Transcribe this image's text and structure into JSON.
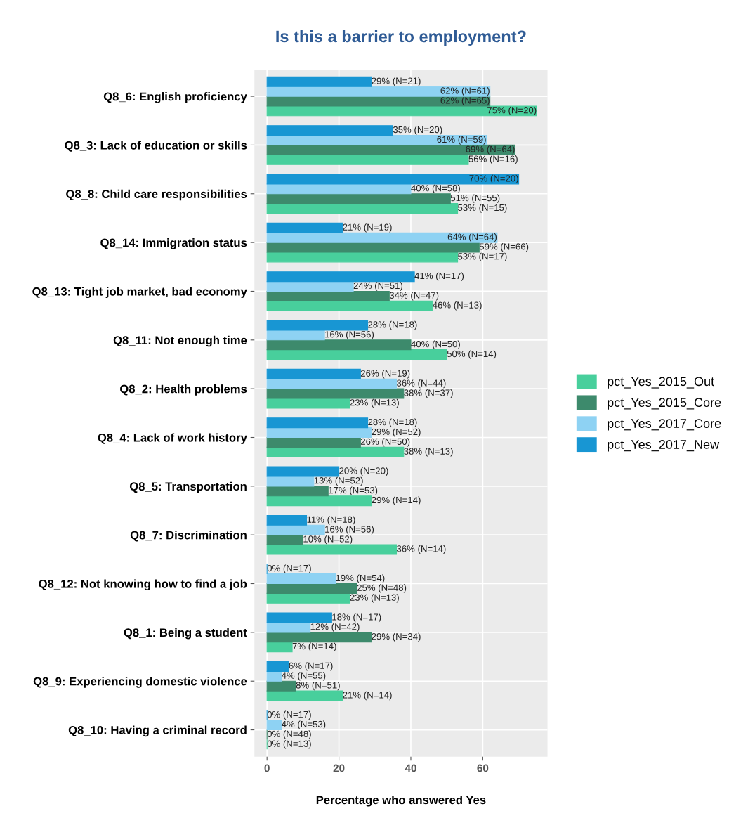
{
  "chart_data": {
    "type": "bar",
    "orientation": "horizontal",
    "title": "Is this a barrier to employment?",
    "xlabel": "Percentage who answered Yes",
    "categories": [
      "Q8_6: English proficiency",
      "Q8_3: Lack of education or skills",
      "Q8_8: Child care responsibilities",
      "Q8_14: Immigration status",
      "Q8_13: Tight job market, bad economy",
      "Q8_11: Not enough time",
      "Q8_2: Health problems",
      "Q8_4: Lack of work history",
      "Q8_5: Transportation",
      "Q8_7: Discrimination",
      "Q8_12: Not knowing how to find a job",
      "Q8_1: Being a student",
      "Q8_9: Experiencing domestic violence",
      "Q8_10: Having a criminal record"
    ],
    "series": [
      {
        "name": "pct_Yes_2015_Out",
        "color": "#48cf9c",
        "values": [
          75,
          56,
          53,
          53,
          46,
          50,
          23,
          38,
          29,
          36,
          23,
          7,
          21,
          0
        ],
        "value_labels": [
          "75% (N=20)",
          "56% (N=16)",
          "53% (N=15)",
          "53% (N=17)",
          "46% (N=13)",
          "50% (N=14)",
          "23% (N=13)",
          "38% (N=13)",
          "29% (N=14)",
          "36% (N=14)",
          "23% (N=13)",
          "7% (N=14)",
          "21% (N=14)",
          "0% (N=13)"
        ]
      },
      {
        "name": "pct_Yes_2015_Core",
        "color": "#3d8a6c",
        "values": [
          62,
          69,
          51,
          59,
          34,
          40,
          38,
          26,
          17,
          10,
          25,
          29,
          8,
          0
        ],
        "value_labels": [
          "62% (N=65)",
          "69% (N=64)",
          "51% (N=55)",
          "59% (N=66)",
          "34% (N=47)",
          "40% (N=50)",
          "38% (N=37)",
          "26% (N=50)",
          "17% (N=53)",
          "10% (N=52)",
          "25% (N=48)",
          "29% (N=34)",
          "8% (N=51)",
          "0% (N=48)"
        ]
      },
      {
        "name": "pct_Yes_2017_Core",
        "color": "#8ed2f3",
        "values": [
          62,
          61,
          40,
          64,
          24,
          16,
          36,
          29,
          13,
          16,
          19,
          12,
          4,
          4
        ],
        "value_labels": [
          "62% (N=61)",
          "61% (N=59)",
          "40% (N=58)",
          "64% (N=64)",
          "24% (N=51)",
          "16% (N=56)",
          "36% (N=44)",
          "29% (N=52)",
          "13% (N=52)",
          "16% (N=56)",
          "19% (N=54)",
          "12% (N=42)",
          "4% (N=55)",
          "4% (N=53)"
        ]
      },
      {
        "name": "pct_Yes_2017_New",
        "color": "#1896d3",
        "values": [
          29,
          35,
          70,
          21,
          41,
          28,
          26,
          28,
          20,
          11,
          0,
          18,
          6,
          0
        ],
        "value_labels": [
          "29% (N=21)",
          "35% (N=20)",
          "70% (N=20)",
          "21% (N=19)",
          "41% (N=17)",
          "28% (N=18)",
          "26% (N=19)",
          "28% (N=18)",
          "20% (N=20)",
          "11% (N=18)",
          "0% (N=17)",
          "18% (N=17)",
          "6% (N=17)",
          "0% (N=17)"
        ]
      }
    ],
    "xlim": [
      -3.5,
      78
    ],
    "xticks": [
      0,
      20,
      40,
      60
    ],
    "grid": true,
    "legend": "right"
  }
}
